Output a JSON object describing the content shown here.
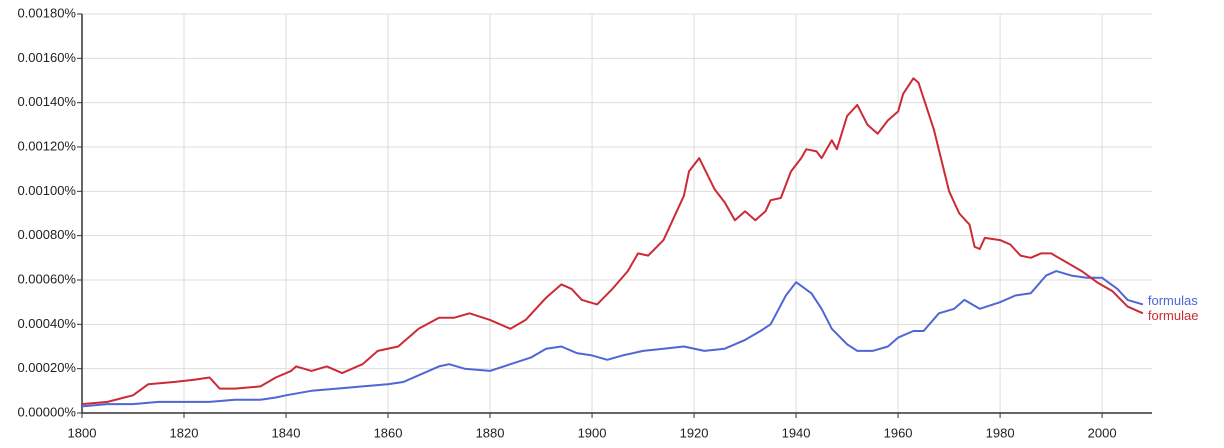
{
  "chart_data": {
    "type": "line",
    "xlim": [
      1800,
      2009
    ],
    "xticks": [
      1800,
      1820,
      1840,
      1860,
      1880,
      1900,
      1920,
      1940,
      1960,
      1980,
      2000
    ],
    "ylim": [
      0,
      0.0018
    ],
    "yticks": [
      {
        "value": 0,
        "label": "0.00000%"
      },
      {
        "value": 0.0002,
        "label": "0.00020%"
      },
      {
        "value": 0.0004,
        "label": "0.00040%"
      },
      {
        "value": 0.0006,
        "label": "0.00060%"
      },
      {
        "value": 0.0008,
        "label": "0.00080%"
      },
      {
        "value": 0.001,
        "label": "0.00100%"
      },
      {
        "value": 0.0012,
        "label": "0.00120%"
      },
      {
        "value": 0.0014,
        "label": "0.00140%"
      },
      {
        "value": 0.0016,
        "label": "0.00160%"
      },
      {
        "value": 0.0018,
        "label": "0.00180%"
      }
    ],
    "grid": true,
    "series": [
      {
        "name": "formulas",
        "color": "#4f66d6",
        "x": [
          1800,
          1805,
          1810,
          1815,
          1820,
          1825,
          1830,
          1835,
          1838,
          1840,
          1845,
          1850,
          1855,
          1860,
          1863,
          1866,
          1870,
          1872,
          1875,
          1880,
          1884,
          1888,
          1891,
          1894,
          1897,
          1900,
          1903,
          1906,
          1910,
          1914,
          1918,
          1922,
          1926,
          1930,
          1933,
          1935,
          1938,
          1940,
          1943,
          1945,
          1947,
          1950,
          1952,
          1955,
          1958,
          1960,
          1963,
          1965,
          1968,
          1971,
          1973,
          1976,
          1980,
          1983,
          1986,
          1989,
          1991,
          1994,
          1997,
          2000,
          2003,
          2005,
          2008
        ],
        "values": [
          3e-05,
          4e-05,
          4e-05,
          5e-05,
          5e-05,
          5e-05,
          6e-05,
          6e-05,
          7e-05,
          8e-05,
          0.0001,
          0.00011,
          0.00012,
          0.00013,
          0.00014,
          0.00017,
          0.00021,
          0.00022,
          0.0002,
          0.00019,
          0.00022,
          0.00025,
          0.00029,
          0.0003,
          0.00027,
          0.00026,
          0.00024,
          0.00026,
          0.00028,
          0.00029,
          0.0003,
          0.00028,
          0.00029,
          0.00033,
          0.00037,
          0.0004,
          0.00053,
          0.00059,
          0.00054,
          0.00047,
          0.00038,
          0.00031,
          0.00028,
          0.00028,
          0.0003,
          0.00034,
          0.00037,
          0.00037,
          0.00045,
          0.00047,
          0.00051,
          0.00047,
          0.0005,
          0.00053,
          0.00054,
          0.00062,
          0.00064,
          0.00062,
          0.00061,
          0.00061,
          0.00056,
          0.00051,
          0.00049
        ]
      },
      {
        "name": "formulae",
        "color": "#cc2b35",
        "x": [
          1800,
          1805,
          1810,
          1813,
          1818,
          1822,
          1825,
          1827,
          1830,
          1835,
          1838,
          1841,
          1842,
          1845,
          1848,
          1851,
          1855,
          1858,
          1862,
          1866,
          1870,
          1873,
          1876,
          1880,
          1884,
          1887,
          1891,
          1894,
          1896,
          1898,
          1901,
          1904,
          1907,
          1909,
          1911,
          1914,
          1916,
          1918,
          1919,
          1921,
          1924,
          1926,
          1928,
          1930,
          1932,
          1934,
          1935,
          1937,
          1939,
          1941,
          1942,
          1944,
          1945,
          1947,
          1948,
          1950,
          1952,
          1954,
          1956,
          1958,
          1960,
          1961,
          1963,
          1964,
          1967,
          1970,
          1972,
          1974,
          1975,
          1976,
          1977,
          1980,
          1982,
          1984,
          1986,
          1988,
          1990,
          1993,
          1996,
          1999,
          2002,
          2005,
          2008
        ],
        "values": [
          4e-05,
          5e-05,
          8e-05,
          0.00013,
          0.00014,
          0.00015,
          0.00016,
          0.00011,
          0.00011,
          0.00012,
          0.00016,
          0.00019,
          0.00021,
          0.00019,
          0.00021,
          0.00018,
          0.00022,
          0.00028,
          0.0003,
          0.00038,
          0.00043,
          0.00043,
          0.00045,
          0.00042,
          0.00038,
          0.00042,
          0.00052,
          0.00058,
          0.00056,
          0.00051,
          0.00049,
          0.00056,
          0.00064,
          0.00072,
          0.00071,
          0.00078,
          0.00088,
          0.00098,
          0.00109,
          0.00115,
          0.00101,
          0.00095,
          0.00087,
          0.00091,
          0.00087,
          0.00091,
          0.00096,
          0.00097,
          0.00109,
          0.00115,
          0.00119,
          0.00118,
          0.00115,
          0.00123,
          0.00119,
          0.00134,
          0.00139,
          0.0013,
          0.00126,
          0.00132,
          0.00136,
          0.00144,
          0.00151,
          0.00149,
          0.00128,
          0.001,
          0.0009,
          0.00085,
          0.00075,
          0.00074,
          0.00079,
          0.00078,
          0.00076,
          0.00071,
          0.0007,
          0.00072,
          0.00072,
          0.00068,
          0.00064,
          0.00059,
          0.00055,
          0.00048,
          0.00045
        ]
      }
    ]
  }
}
